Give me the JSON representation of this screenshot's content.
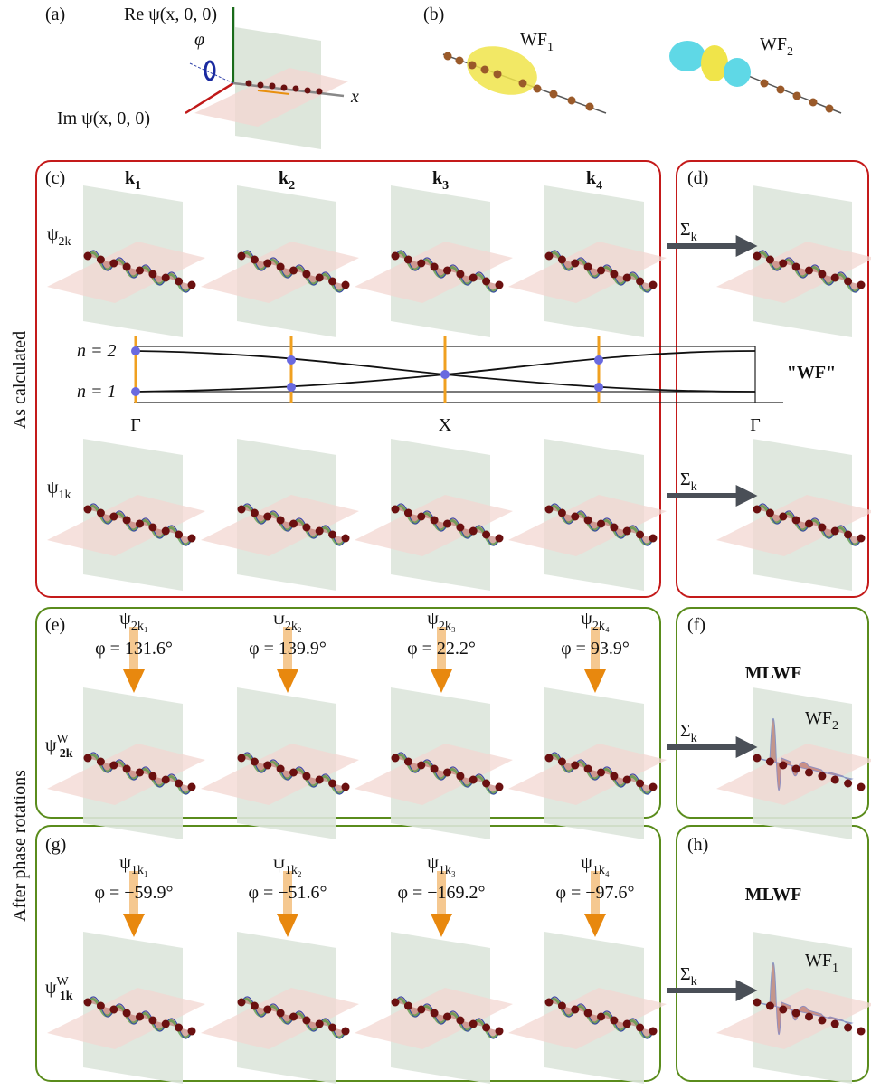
{
  "panel_labels": [
    "(a)",
    "(b)",
    "(c)",
    "(d)",
    "(e)",
    "(f)",
    "(g)",
    "(h)"
  ],
  "panel_a": {
    "re_axis": "Re ψ(x, 0, 0)",
    "im_axis": "Im ψ(x, 0, 0)",
    "phi": "φ",
    "x": "x"
  },
  "panel_b": {
    "wf1": {
      "base": "WF",
      "sub": "1"
    },
    "wf2": {
      "base": "WF",
      "sub": "2"
    }
  },
  "k_labels": [
    {
      "base": "k",
      "sub": "1"
    },
    {
      "base": "k",
      "sub": "2"
    },
    {
      "base": "k",
      "sub": "3"
    },
    {
      "base": "k",
      "sub": "4"
    }
  ],
  "row_labels": {
    "psi2k": {
      "base": "ψ",
      "sub": "2k"
    },
    "psi1k": {
      "base": "ψ",
      "sub": "1k"
    },
    "psiW2k": {
      "base": "ψ",
      "sup": "W",
      "sub": "2k"
    },
    "psiW1k": {
      "base": "ψ",
      "sup": "W",
      "sub": "1k"
    }
  },
  "band": {
    "n2": "n = 2",
    "n1": "n = 1",
    "ticks": [
      "Γ",
      "X",
      "Γ"
    ],
    "wf_quote": "\"WF\""
  },
  "sum_label": {
    "base": "Σ",
    "sub": "k"
  },
  "side_labels": [
    "As calculated",
    "After phase rotations"
  ],
  "mlwf": "MLWF",
  "rotations_2": [
    {
      "psi": {
        "base": "ψ",
        "sub": "2k₁"
      },
      "phi": "φ = 131.6°"
    },
    {
      "psi": {
        "base": "ψ",
        "sub": "2k₂"
      },
      "phi": "φ = 139.9°"
    },
    {
      "psi": {
        "base": "ψ",
        "sub": "2k₃"
      },
      "phi": "φ = 22.2°"
    },
    {
      "psi": {
        "base": "ψ",
        "sub": "2k₄"
      },
      "phi": "φ = 93.9°"
    }
  ],
  "rotations_1": [
    {
      "psi": {
        "base": "ψ",
        "sub": "1k₁"
      },
      "phi": "φ = −59.9°"
    },
    {
      "psi": {
        "base": "ψ",
        "sub": "1k₂"
      },
      "phi": "φ = −51.6°"
    },
    {
      "psi": {
        "base": "ψ",
        "sub": "1k₃"
      },
      "phi": "φ = −169.2°"
    },
    {
      "psi": {
        "base": "ψ",
        "sub": "1k₄"
      },
      "phi": "φ = −97.6°"
    }
  ],
  "wf_f": {
    "base": "WF",
    "sub": "2"
  },
  "wf_h": {
    "base": "WF",
    "sub": "1"
  }
}
